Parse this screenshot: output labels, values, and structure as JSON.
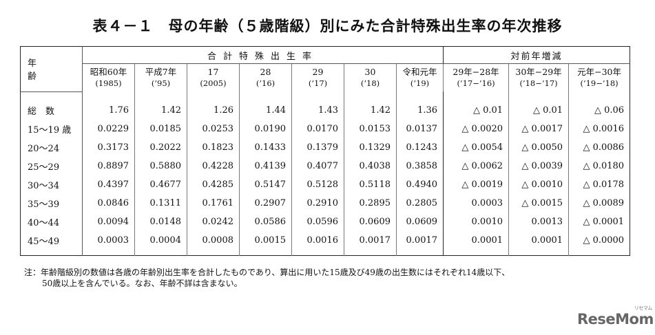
{
  "title": "表４－１　母の年齢（５歳階級）別にみた合計特殊出生率の年次推移",
  "header": {
    "corner": "年　齢",
    "group_main": "合計特殊出生率",
    "group_diff": "対前年増減",
    "columns": [
      {
        "label": "昭和60年",
        "sub": "(1985)"
      },
      {
        "label": "平成7年",
        "sub": "(’95)"
      },
      {
        "label": "17",
        "sub": "(2005)"
      },
      {
        "label": "28",
        "sub": "(’16)"
      },
      {
        "label": "29",
        "sub": "(’17)"
      },
      {
        "label": "30",
        "sub": "(’18)"
      },
      {
        "label": "令和元年",
        "sub": "(’19)"
      },
      {
        "label": "29年−28年",
        "sub": "(’17−’16)"
      },
      {
        "label": "30年−29年",
        "sub": "(’18−’17)"
      },
      {
        "label": "元年−30年",
        "sub": "(’19−’18)"
      }
    ]
  },
  "rows": [
    {
      "label": "総　数",
      "values": [
        "1.76",
        "1.42",
        "1.26",
        "1.44",
        "1.43",
        "1.42",
        "1.36",
        "△ 0.01",
        "△ 0.01",
        "△ 0.06"
      ]
    },
    {
      "label": "15～19 歳",
      "values": [
        "0.0229",
        "0.0185",
        "0.0253",
        "0.0190",
        "0.0170",
        "0.0153",
        "0.0137",
        "△ 0.0020",
        "△ 0.0017",
        "△ 0.0016"
      ]
    },
    {
      "label": "20～24",
      "values": [
        "0.3173",
        "0.2022",
        "0.1823",
        "0.1433",
        "0.1379",
        "0.1329",
        "0.1243",
        "△ 0.0054",
        "△ 0.0050",
        "△ 0.0086"
      ]
    },
    {
      "label": "25～29",
      "values": [
        "0.8897",
        "0.5880",
        "0.4228",
        "0.4139",
        "0.4077",
        "0.4038",
        "0.3858",
        "△ 0.0062",
        "△ 0.0039",
        "△ 0.0180"
      ]
    },
    {
      "label": "30～34",
      "values": [
        "0.4397",
        "0.4677",
        "0.4285",
        "0.5147",
        "0.5128",
        "0.5118",
        "0.4940",
        "△ 0.0019",
        "△ 0.0010",
        "△ 0.0178"
      ]
    },
    {
      "label": "35～39",
      "values": [
        "0.0846",
        "0.1311",
        "0.1761",
        "0.2907",
        "0.2910",
        "0.2895",
        "0.2805",
        "0.0003",
        "△ 0.0015",
        "△ 0.0089"
      ]
    },
    {
      "label": "40～44",
      "values": [
        "0.0094",
        "0.0148",
        "0.0242",
        "0.0586",
        "0.0596",
        "0.0609",
        "0.0609",
        "0.0010",
        "0.0013",
        "△ 0.0001"
      ]
    },
    {
      "label": "45～49",
      "values": [
        "0.0003",
        "0.0004",
        "0.0008",
        "0.0015",
        "0.0016",
        "0.0017",
        "0.0017",
        "0.0001",
        "0.0001",
        "△ 0.0000"
      ]
    }
  ],
  "note": {
    "line1": "注：年齢階級別の数値は各歳の年齢別出生率を合計したものであり、算出に用いた15歳及び49歳の出生数にはそれぞれ14歳以下、",
    "line2": "50歳以上を含んでいる。なお、年齢不詳は含まない。"
  },
  "logo": {
    "text": "ReseMom",
    "kana": "リセマム"
  }
}
